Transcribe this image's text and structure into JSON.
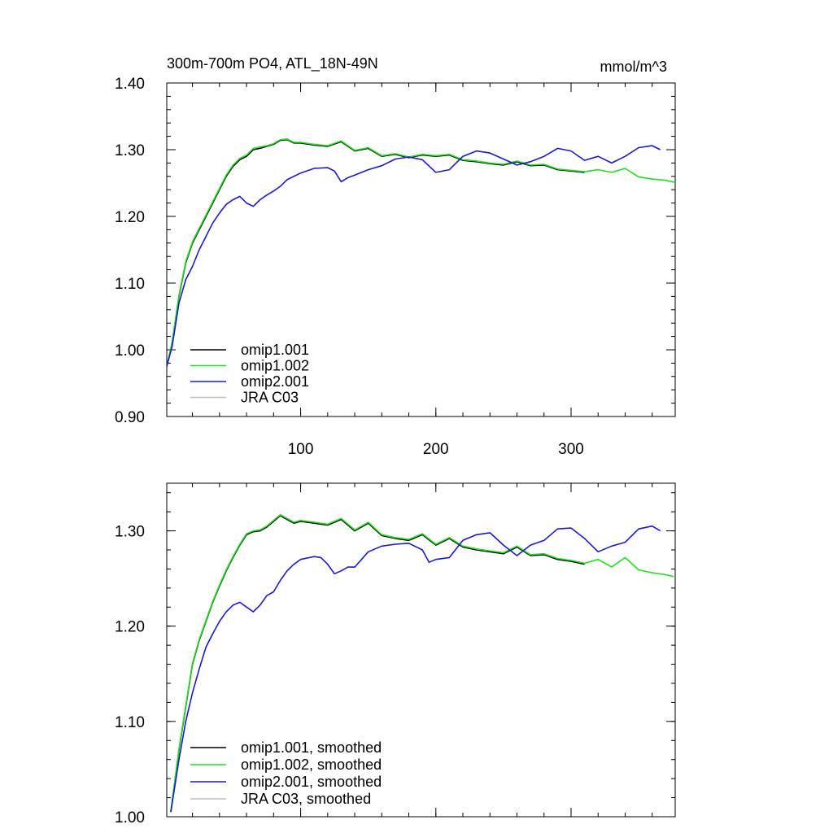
{
  "chart_data": [
    {
      "type": "line",
      "title": "300m-700m PO4, ATL_18N-49N",
      "units": "mmol/m^3",
      "xlim": [
        1,
        377
      ],
      "ylim": [
        0.9,
        1.4
      ],
      "x_ticks": [
        100,
        200,
        300
      ],
      "x_tick_labels": [
        "100",
        "200",
        "300"
      ],
      "y_ticks": [
        0.9,
        1.0,
        1.1,
        1.2,
        1.3,
        1.4
      ],
      "y_tick_labels": [
        "0.90",
        "1.00",
        "1.10",
        "1.20",
        "1.30",
        "1.40"
      ],
      "legend_position": "bottom-left",
      "series": [
        {
          "name": "omip1.001",
          "color": "#000000",
          "x": [
            1,
            5,
            10,
            15,
            20,
            25,
            30,
            35,
            40,
            45,
            50,
            55,
            60,
            65,
            70,
            75,
            80,
            85,
            90,
            95,
            100,
            110,
            120,
            130,
            140,
            150,
            160,
            170,
            180,
            190,
            200,
            210,
            220,
            230,
            240,
            250,
            260,
            270,
            280,
            290,
            300,
            310
          ],
          "y": [
            0.975,
            1.01,
            1.08,
            1.13,
            1.16,
            1.18,
            1.2,
            1.22,
            1.24,
            1.26,
            1.275,
            1.285,
            1.29,
            1.3,
            1.302,
            1.305,
            1.308,
            1.314,
            1.315,
            1.31,
            1.31,
            1.307,
            1.305,
            1.312,
            1.298,
            1.302,
            1.29,
            1.293,
            1.288,
            1.292,
            1.29,
            1.292,
            1.284,
            1.282,
            1.279,
            1.277,
            1.282,
            1.276,
            1.277,
            1.27,
            1.268,
            1.266
          ]
        },
        {
          "name": "omip1.002",
          "color": "#22dd22",
          "x": [
            1,
            5,
            10,
            15,
            20,
            25,
            30,
            35,
            40,
            45,
            50,
            55,
            60,
            65,
            70,
            75,
            80,
            85,
            90,
            95,
            100,
            110,
            120,
            130,
            140,
            150,
            160,
            170,
            180,
            190,
            200,
            210,
            220,
            230,
            240,
            250,
            260,
            270,
            280,
            290,
            300,
            310,
            320,
            330,
            340,
            350,
            360,
            370,
            377
          ],
          "y": [
            0.975,
            1.012,
            1.082,
            1.132,
            1.162,
            1.182,
            1.202,
            1.222,
            1.242,
            1.262,
            1.277,
            1.287,
            1.292,
            1.302,
            1.304,
            1.306,
            1.309,
            1.315,
            1.316,
            1.311,
            1.311,
            1.308,
            1.306,
            1.313,
            1.299,
            1.303,
            1.291,
            1.294,
            1.289,
            1.293,
            1.291,
            1.293,
            1.285,
            1.283,
            1.28,
            1.278,
            1.283,
            1.277,
            1.278,
            1.271,
            1.269,
            1.267,
            1.27,
            1.266,
            1.272,
            1.259,
            1.256,
            1.254,
            1.251
          ]
        },
        {
          "name": "omip2.001",
          "color": "#1a1acc",
          "x": [
            1,
            5,
            10,
            15,
            20,
            25,
            30,
            35,
            40,
            45,
            50,
            55,
            60,
            65,
            70,
            75,
            80,
            85,
            90,
            100,
            110,
            120,
            125,
            130,
            135,
            140,
            150,
            160,
            170,
            180,
            190,
            200,
            210,
            220,
            230,
            240,
            250,
            260,
            270,
            280,
            290,
            300,
            310,
            320,
            330,
            340,
            350,
            360,
            366
          ],
          "y": [
            0.975,
            1.005,
            1.07,
            1.105,
            1.125,
            1.15,
            1.17,
            1.19,
            1.205,
            1.218,
            1.225,
            1.23,
            1.22,
            1.215,
            1.225,
            1.232,
            1.238,
            1.245,
            1.255,
            1.265,
            1.272,
            1.273,
            1.268,
            1.252,
            1.258,
            1.262,
            1.27,
            1.276,
            1.286,
            1.289,
            1.285,
            1.266,
            1.27,
            1.29,
            1.298,
            1.295,
            1.286,
            1.277,
            1.282,
            1.29,
            1.302,
            1.298,
            1.284,
            1.29,
            1.28,
            1.29,
            1.303,
            1.306,
            1.3
          ]
        },
        {
          "name": "JRA C03",
          "color": "#c0c0c0",
          "x": [],
          "y": []
        }
      ]
    },
    {
      "type": "line",
      "title": "",
      "xlim": [
        1,
        377
      ],
      "ylim": [
        1.0,
        1.35
      ],
      "x_ticks": [
        100,
        200,
        300
      ],
      "x_tick_labels": [],
      "y_ticks": [
        1.0,
        1.1,
        1.2,
        1.3
      ],
      "y_tick_labels": [
        "1.00",
        "1.10",
        "1.20",
        "1.30"
      ],
      "legend_position": "bottom-left",
      "series": [
        {
          "name": "omip1.001, smoothed",
          "color": "#000000",
          "x": [
            4,
            10,
            15,
            20,
            25,
            30,
            35,
            40,
            45,
            50,
            55,
            60,
            65,
            70,
            75,
            80,
            85,
            90,
            95,
            100,
            110,
            120,
            130,
            140,
            150,
            160,
            170,
            180,
            190,
            200,
            210,
            220,
            230,
            240,
            250,
            260,
            270,
            280,
            290,
            300,
            310
          ],
          "y": [
            1.005,
            1.07,
            1.115,
            1.16,
            1.185,
            1.205,
            1.225,
            1.242,
            1.258,
            1.272,
            1.285,
            1.296,
            1.299,
            1.3,
            1.304,
            1.31,
            1.316,
            1.312,
            1.308,
            1.31,
            1.308,
            1.306,
            1.312,
            1.3,
            1.308,
            1.295,
            1.292,
            1.29,
            1.296,
            1.285,
            1.292,
            1.283,
            1.28,
            1.278,
            1.276,
            1.283,
            1.274,
            1.275,
            1.27,
            1.268,
            1.265
          ]
        },
        {
          "name": "omip1.002, smoothed",
          "color": "#22dd22",
          "x": [
            4,
            10,
            15,
            20,
            25,
            30,
            35,
            40,
            45,
            50,
            55,
            60,
            65,
            70,
            75,
            80,
            85,
            90,
            95,
            100,
            110,
            120,
            130,
            140,
            150,
            160,
            170,
            180,
            190,
            200,
            210,
            220,
            230,
            240,
            250,
            260,
            270,
            280,
            290,
            300,
            310,
            320,
            330,
            340,
            350,
            360,
            370,
            376
          ],
          "y": [
            1.006,
            1.071,
            1.116,
            1.161,
            1.186,
            1.206,
            1.226,
            1.243,
            1.259,
            1.273,
            1.286,
            1.297,
            1.3,
            1.301,
            1.305,
            1.311,
            1.317,
            1.313,
            1.309,
            1.311,
            1.309,
            1.307,
            1.313,
            1.301,
            1.309,
            1.296,
            1.293,
            1.291,
            1.297,
            1.286,
            1.293,
            1.284,
            1.281,
            1.279,
            1.277,
            1.284,
            1.275,
            1.276,
            1.271,
            1.269,
            1.266,
            1.27,
            1.262,
            1.272,
            1.259,
            1.256,
            1.254,
            1.252
          ]
        },
        {
          "name": "omip2.001, smoothed",
          "color": "#1a1acc",
          "x": [
            4,
            10,
            15,
            20,
            25,
            30,
            35,
            40,
            45,
            50,
            55,
            60,
            65,
            70,
            75,
            80,
            85,
            90,
            95,
            100,
            110,
            115,
            120,
            125,
            130,
            135,
            140,
            150,
            160,
            170,
            180,
            190,
            195,
            200,
            210,
            220,
            230,
            240,
            250,
            260,
            270,
            280,
            290,
            300,
            310,
            320,
            330,
            340,
            350,
            360,
            366
          ],
          "y": [
            1.005,
            1.06,
            1.1,
            1.13,
            1.155,
            1.178,
            1.192,
            1.205,
            1.215,
            1.222,
            1.225,
            1.22,
            1.215,
            1.222,
            1.232,
            1.236,
            1.248,
            1.258,
            1.265,
            1.27,
            1.273,
            1.272,
            1.265,
            1.255,
            1.258,
            1.262,
            1.262,
            1.278,
            1.284,
            1.286,
            1.287,
            1.28,
            1.267,
            1.27,
            1.272,
            1.29,
            1.296,
            1.298,
            1.285,
            1.274,
            1.285,
            1.29,
            1.302,
            1.303,
            1.292,
            1.278,
            1.284,
            1.288,
            1.302,
            1.305,
            1.3
          ]
        },
        {
          "name": "JRA C03, smoothed",
          "color": "#c0c0c0",
          "x": [],
          "y": []
        }
      ]
    }
  ]
}
